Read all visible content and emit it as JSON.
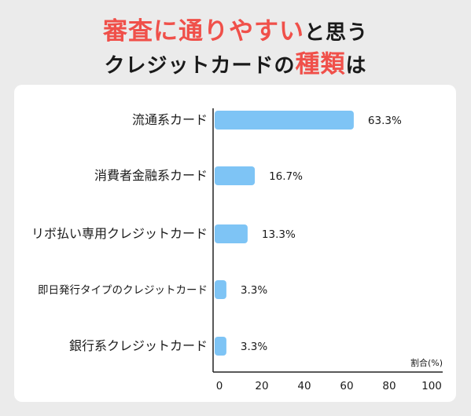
{
  "title": {
    "line1_highlight": "審査に通りやすい",
    "line1_rest": "と思う",
    "line2_rest": "クレジットカードの",
    "line2_highlight": "種類",
    "line2_tail": "は"
  },
  "colors": {
    "bar": "#7ec4f5",
    "highlight": "#f0504a",
    "background": "#ebebeb",
    "card": "#ffffff"
  },
  "chart_data": {
    "type": "bar",
    "orientation": "horizontal",
    "categories": [
      "流通系カード",
      "消費者金融系カード",
      "リボ払い専用クレジットカード",
      "即日発行タイプのクレジットカード",
      "銀行系クレジットカード"
    ],
    "values": [
      63.3,
      16.7,
      13.3,
      3.3,
      3.3
    ],
    "value_labels": [
      "63.3%",
      "16.7%",
      "13.3%",
      "3.3%",
      "3.3%"
    ],
    "xlabel": "割合(%)",
    "xlim": [
      0,
      100
    ],
    "xticks": [
      "0",
      "20",
      "40",
      "60",
      "80",
      "100"
    ],
    "grid": false,
    "legend": "none"
  }
}
